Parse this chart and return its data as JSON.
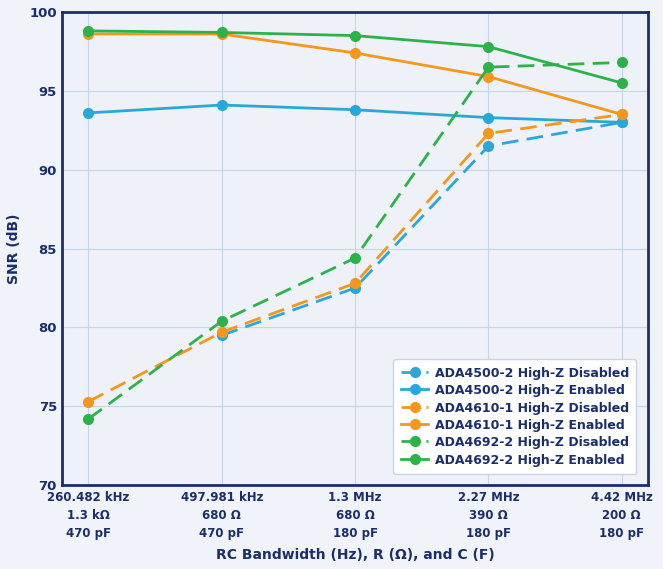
{
  "x_positions": [
    0,
    1,
    2,
    3,
    4
  ],
  "x_tick_labels": [
    "260.482 kHz\n1.3 kΩ\n470 pF",
    "497.981 kHz\n680 Ω\n470 pF",
    "1.3 MHz\n680 Ω\n180 pF",
    "2.27 MHz\n390 Ω\n180 pF",
    "4.42 MHz\n200 Ω\n180 pF"
  ],
  "xlabel": "RC Bandwidth (Hz), R (Ω), and C (F)",
  "ylabel": "SNR (dB)",
  "ylim": [
    70,
    100
  ],
  "yticks": [
    70,
    75,
    80,
    85,
    90,
    95,
    100
  ],
  "series": [
    {
      "label": "ADA4500-2 High-Z Disabled",
      "color": "#29a8d8",
      "linestyle": "dashed",
      "marker": "o",
      "data": [
        null,
        79.5,
        82.5,
        91.5,
        93.0
      ]
    },
    {
      "label": "ADA4500-2 High-Z Enabled",
      "color": "#29a8d8",
      "linestyle": "solid",
      "marker": "o",
      "data": [
        93.6,
        94.1,
        93.8,
        93.3,
        93.0
      ]
    },
    {
      "label": "ADA4610-1 High-Z Disabled",
      "color": "#f5961d",
      "linestyle": "dashed",
      "marker": "o",
      "data": [
        75.3,
        79.7,
        82.8,
        92.3,
        93.5
      ]
    },
    {
      "label": "ADA4610-1 High-Z Enabled",
      "color": "#f5961d",
      "linestyle": "solid",
      "marker": "o",
      "data": [
        98.6,
        98.6,
        97.4,
        95.9,
        93.5
      ]
    },
    {
      "label": "ADA4692-2 High-Z Disabled",
      "color": "#2db24a",
      "linestyle": "dashed",
      "marker": "o",
      "data": [
        74.2,
        80.4,
        84.4,
        96.5,
        96.8
      ]
    },
    {
      "label": "ADA4692-2 High-Z Enabled",
      "color": "#2db24a",
      "linestyle": "solid",
      "marker": "o",
      "data": [
        98.8,
        98.7,
        98.5,
        97.8,
        95.5
      ]
    }
  ],
  "background_color": "#f0f4fa",
  "plot_bg_color": "#eef2f8",
  "frame_color": "#1a2e6c",
  "grid_color": "#c8d4e8",
  "title_color": "#1a2e6c",
  "label_color": "#1a2e6c"
}
